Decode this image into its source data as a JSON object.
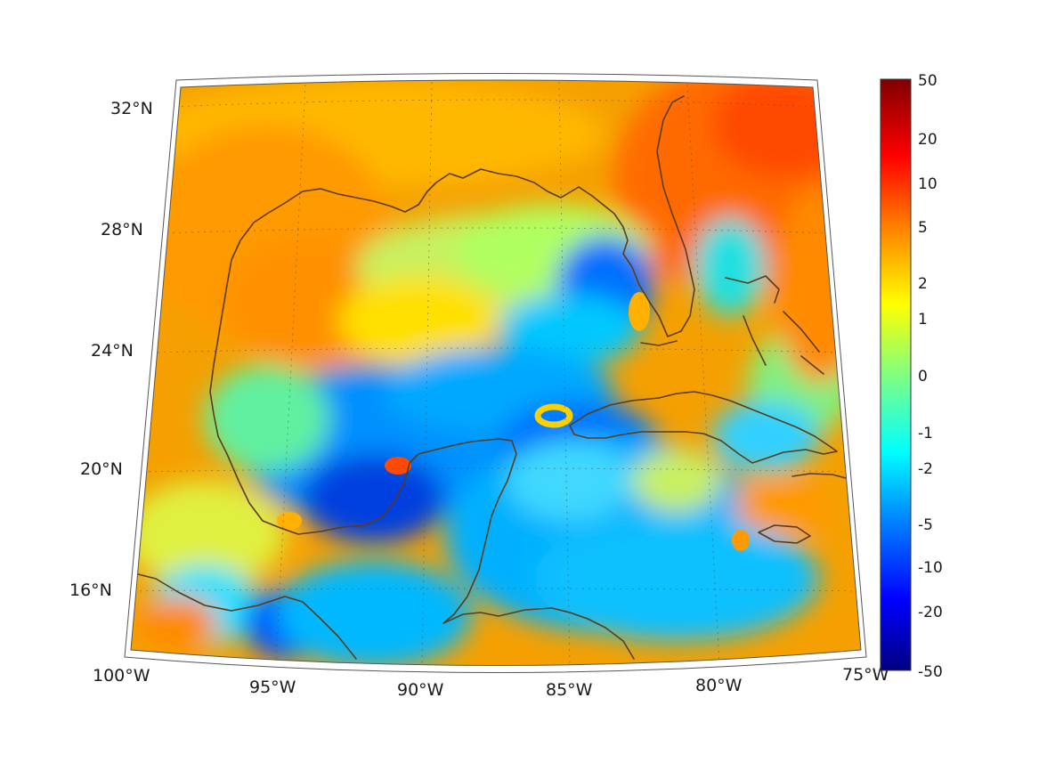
{
  "map": {
    "lat_labels": [
      "32°N",
      "28°N",
      "24°N",
      "20°N",
      "16°N"
    ],
    "lon_labels": [
      "100°W",
      "95°W",
      "90°W",
      "85°W",
      "80°W",
      "75°W"
    ],
    "lat_range": [
      14,
      33
    ],
    "lon_range": [
      -100,
      -75
    ]
  },
  "colorbar": {
    "labels": [
      "50",
      "20",
      "10",
      "5",
      "2",
      "1",
      "0",
      "-1",
      "-2",
      "-5",
      "-10",
      "-20",
      "-50"
    ],
    "colormap": "jet",
    "colors": [
      "#000080",
      "#0000ff",
      "#0080ff",
      "#00ffff",
      "#80ff80",
      "#ffff00",
      "#ff8000",
      "#ff0000",
      "#800000"
    ]
  },
  "colors": {
    "coastline": "#5a3b1c",
    "background": "#ffffff"
  }
}
